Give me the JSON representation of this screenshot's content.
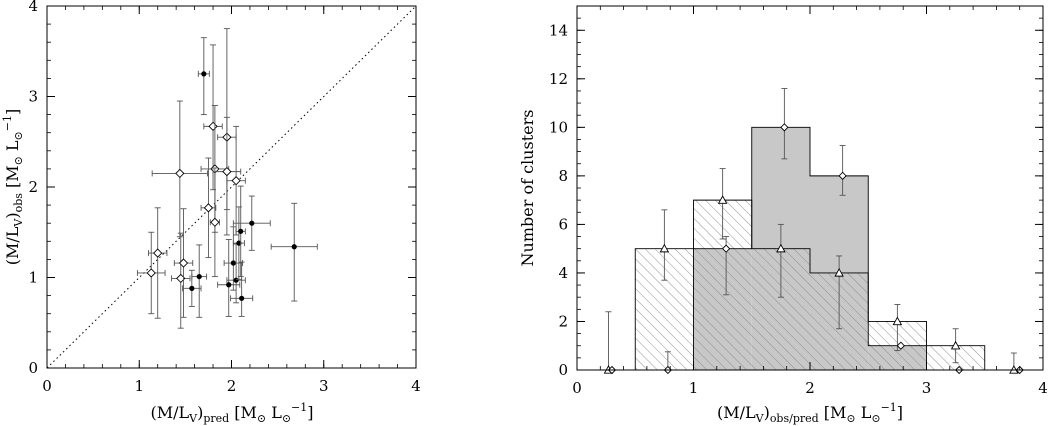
{
  "chart_data": [
    {
      "type": "scatter",
      "title": "",
      "xlabel": {
        "main": "(M/L",
        "sub1": "V",
        "close": ")",
        "sub2": "pred",
        "unit_open": " [M",
        "sun1": "⊙",
        "unit_mid": " L",
        "sun2": "⊙",
        "sup": "−1",
        "unit_close": "]"
      },
      "ylabel": {
        "main": "(M/L",
        "sub1": "V",
        "close": ")",
        "sub2": "obs",
        "unit_open": " [M",
        "sun1": "⊙",
        "unit_mid": " L",
        "sun2": "⊙",
        "sup": "−1",
        "unit_close": "]"
      },
      "xlim": [
        0,
        4
      ],
      "ylim": [
        0,
        4
      ],
      "xticks": [
        "0",
        "1",
        "2",
        "3",
        "4"
      ],
      "yticks": [
        "0",
        "1",
        "2",
        "3",
        "4"
      ],
      "reference_line": "one-to-one dotted",
      "series": [
        {
          "marker": "diamond",
          "points": [
            {
              "x": 1.13,
              "y": 1.05,
              "xerr": 0.15,
              "yerr": [
                0.45,
                0.45
              ]
            },
            {
              "x": 1.2,
              "y": 1.27,
              "xerr": 0.1,
              "yerr": [
                0.72,
                0.5
              ]
            },
            {
              "x": 1.44,
              "y": 2.15,
              "xerr": 0.3,
              "yerr": [
                0.7,
                0.8
              ]
            },
            {
              "x": 1.45,
              "y": 0.99,
              "xerr": 0.1,
              "yerr": [
                0.55,
                0.5
              ]
            },
            {
              "x": 1.48,
              "y": 1.16,
              "xerr": 0.1,
              "yerr": [
                0.6,
                0.6
              ]
            },
            {
              "x": 1.75,
              "y": 1.77,
              "xerr": 0.08,
              "yerr": [
                0.55,
                0.55
              ]
            },
            {
              "x": 1.8,
              "y": 2.67,
              "xerr": 0.1,
              "yerr": [
                0.7,
                0.9
              ]
            },
            {
              "x": 1.82,
              "y": 2.2,
              "xerr": 0.15,
              "yerr": [
                0.7,
                0.7
              ]
            },
            {
              "x": 1.82,
              "y": 1.61,
              "xerr": 0.05,
              "yerr": [
                0.6,
                0.6
              ]
            },
            {
              "x": 1.95,
              "y": 2.55,
              "xerr": 0.1,
              "yerr": [
                0.8,
                1.2
              ]
            },
            {
              "x": 1.95,
              "y": 2.17,
              "xerr": 0.15,
              "yerr": [
                0.7,
                0.6
              ]
            },
            {
              "x": 2.05,
              "y": 2.07,
              "xerr": 0.1,
              "yerr": [
                0.6,
                0.6
              ]
            }
          ]
        },
        {
          "marker": "filled-circle",
          "points": [
            {
              "x": 1.7,
              "y": 3.25,
              "xerr": 0.06,
              "yerr": [
                0.45,
                0.4
              ]
            },
            {
              "x": 1.57,
              "y": 0.88,
              "xerr": 0.1,
              "yerr": [
                0.2,
                0.2
              ]
            },
            {
              "x": 1.65,
              "y": 1.01,
              "xerr": 0.08,
              "yerr": [
                0.45,
                0.35
              ]
            },
            {
              "x": 1.97,
              "y": 0.92,
              "xerr": 0.12,
              "yerr": [
                0.35,
                0.5
              ]
            },
            {
              "x": 2.02,
              "y": 1.16,
              "xerr": 0.1,
              "yerr": [
                0.3,
                0.4
              ]
            },
            {
              "x": 2.05,
              "y": 0.97,
              "xerr": 0.1,
              "yerr": [
                0.25,
                0.4
              ]
            },
            {
              "x": 2.08,
              "y": 1.38,
              "xerr": 0.06,
              "yerr": [
                0.4,
                0.4
              ]
            },
            {
              "x": 2.1,
              "y": 1.51,
              "xerr": 0.05,
              "yerr": [
                0.5,
                0.5
              ]
            },
            {
              "x": 2.11,
              "y": 0.77,
              "xerr": 0.12,
              "yerr": [
                0.2,
                0.4
              ]
            },
            {
              "x": 2.22,
              "y": 1.6,
              "xerr": 0.2,
              "yerr": [
                0.3,
                0.3
              ]
            },
            {
              "x": 2.68,
              "y": 1.34,
              "xerr": 0.25,
              "yerr": [
                0.6,
                0.48
              ]
            }
          ]
        }
      ]
    },
    {
      "type": "histogram",
      "title": "",
      "xlabel": {
        "main": "(M/L",
        "sub1": "V",
        "close": ")",
        "sub2": "obs/pred",
        "unit_open": " [M",
        "sun1": "⊙",
        "unit_mid": " L",
        "sun2": "⊙",
        "sup": "−1",
        "unit_close": "]"
      },
      "ylabel": "Number of clusters",
      "xlim": [
        0,
        4
      ],
      "ylim": [
        0,
        15
      ],
      "xticks": [
        "0",
        "1",
        "2",
        "3",
        "4"
      ],
      "yticks": [
        "0",
        "2",
        "4",
        "6",
        "8",
        "10",
        "12",
        "14"
      ],
      "bin_edges": [
        0,
        0.5,
        1.0,
        1.5,
        2.0,
        2.5,
        3.0,
        3.5,
        4.0
      ],
      "series": [
        {
          "style": "hatched",
          "marker": "triangle",
          "counts": [
            0,
            5,
            7,
            5,
            4,
            2,
            1,
            0
          ],
          "marker_x": [
            0.27,
            0.75,
            1.25,
            1.75,
            2.25,
            2.75,
            3.25,
            3.75
          ],
          "errors": [
            [
              0,
              2.4
            ],
            [
              1.3,
              1.6
            ],
            [
              1.6,
              1.3
            ],
            [
              2.0,
              1.0
            ],
            [
              2.3,
              0.7
            ],
            [
              1.2,
              0.7
            ],
            [
              0.7,
              0.7
            ],
            [
              0,
              0.7
            ]
          ]
        },
        {
          "style": "grey-filled",
          "marker": "diamond",
          "counts": [
            0,
            0,
            5,
            10,
            8,
            1,
            0,
            0
          ],
          "marker_x": [
            0.3,
            0.78,
            1.28,
            1.78,
            2.28,
            2.78,
            3.28,
            3.8
          ],
          "errors": [
            [
              0,
              0
            ],
            [
              0,
              0.75
            ],
            [
              1.9,
              0.5
            ],
            [
              1.3,
              1.6
            ],
            [
              0.8,
              1.25
            ],
            [
              0,
              0
            ],
            [
              0,
              0
            ],
            [
              0,
              0
            ]
          ]
        }
      ]
    }
  ]
}
